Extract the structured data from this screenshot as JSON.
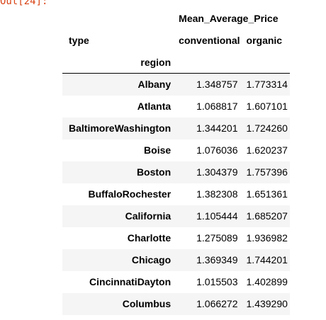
{
  "cell": {
    "prompt": "Out[24]:"
  },
  "table": {
    "top_header": "Mean_Average_Price",
    "columns_label": "type",
    "columns": [
      "conventional",
      "organic"
    ],
    "index_label": "region",
    "rows": [
      {
        "region": "Albany",
        "conventional": "1.348757",
        "organic": "1.773314"
      },
      {
        "region": "Atlanta",
        "conventional": "1.068817",
        "organic": "1.607101"
      },
      {
        "region": "BaltimoreWashington",
        "conventional": "1.344201",
        "organic": "1.724260"
      },
      {
        "region": "Boise",
        "conventional": "1.076036",
        "organic": "1.620237"
      },
      {
        "region": "Boston",
        "conventional": "1.304379",
        "organic": "1.757396"
      },
      {
        "region": "BuffaloRochester",
        "conventional": "1.382308",
        "organic": "1.651361"
      },
      {
        "region": "California",
        "conventional": "1.105444",
        "organic": "1.685207"
      },
      {
        "region": "Charlotte",
        "conventional": "1.275089",
        "organic": "1.936982"
      },
      {
        "region": "Chicago",
        "conventional": "1.369349",
        "organic": "1.744201"
      },
      {
        "region": "CincinnatiDayton",
        "conventional": "1.015503",
        "organic": "1.402899"
      },
      {
        "region": "Columbus",
        "conventional": "1.066272",
        "organic": "1.439290"
      }
    ]
  }
}
